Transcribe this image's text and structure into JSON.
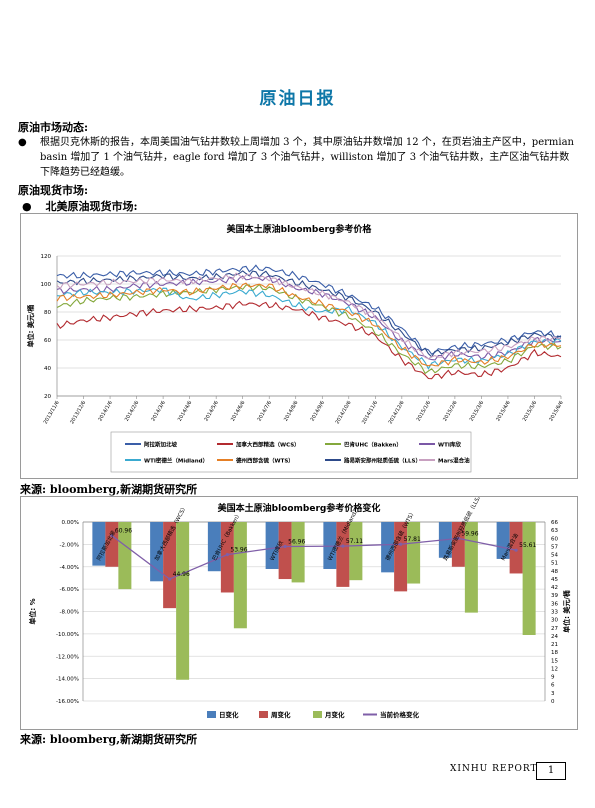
{
  "header": {
    "title": "原油日报"
  },
  "section1": {
    "heading": "原油市场动态:",
    "bullet": "●",
    "paragraph": "根据贝克休斯的报告，本周美国油气钻井数较上周增加 3 个，其中原油钻井数增加 12 个，在页岩油主产区中，permian basin 增加了 1 个油气钻井，eagle ford 增加了 3 个油气钻井，williston 增加了 3 个油气钻井数，主产区油气钻井数下降趋势已经趋缓。"
  },
  "section2": {
    "heading": "原油现货市场:",
    "bullet": "●",
    "subheading": "北美原油现货市场:"
  },
  "sources": {
    "chart1": "来源: bloomberg,新湖期货研究所",
    "chart2": "来源: bloomberg,新湖期货研究所"
  },
  "footer": {
    "report": "XINHU  REPORT",
    "page": "1"
  },
  "chart_data": [
    {
      "type": "line",
      "title": "美国本土原油bloomberg参考价格",
      "ylabel": "单位: 美元/桶",
      "ylim": [
        20,
        120
      ],
      "yticks": [
        "20",
        "40",
        "60",
        "80",
        "100",
        "120"
      ],
      "grid": true,
      "legend_position": "bottom",
      "x": [
        "2013/11/6",
        "2013/12/6",
        "2014/1/6",
        "2014/2/6",
        "2014/3/6",
        "2014/4/6",
        "2014/5/6",
        "2014/6/6",
        "2014/7/6",
        "2014/8/6",
        "2014/9/6",
        "2014/10/6",
        "2014/11/6",
        "2014/12/6",
        "2015/1/6",
        "2015/2/6",
        "2015/3/6",
        "2015/4/6",
        "2015/5/6",
        "2015/6/6"
      ],
      "series": [
        {
          "name": "阿拉斯加北坡",
          "color": "#3a5ea8",
          "values": [
            106,
            106,
            107,
            108,
            108,
            107,
            109,
            111,
            111,
            106,
            100,
            92,
            83,
            68,
            51,
            55,
            57,
            60,
            66,
            63
          ]
        },
        {
          "name": "加拿大西部精选（WCS）",
          "color": "#b22a2f",
          "values": [
            70,
            74,
            76,
            79,
            81,
            82,
            83,
            86,
            85,
            82,
            76,
            71,
            63,
            46,
            33,
            37,
            35,
            40,
            51,
            48
          ]
        },
        {
          "name": "巴肯UHC（Bakken）",
          "color": "#84a83c",
          "values": [
            84,
            88,
            90,
            91,
            93,
            94,
            96,
            98,
            97,
            90,
            84,
            77,
            66,
            50,
            37,
            42,
            41,
            45,
            56,
            55
          ]
        },
        {
          "name": "WTI库欣",
          "color": "#7b58a6",
          "values": [
            95,
            96,
            96,
            99,
            100,
            101,
            102,
            104,
            104,
            97,
            93,
            86,
            76,
            59,
            46,
            50,
            48,
            51,
            60,
            59
          ]
        },
        {
          "name": "WTI密德兰（Midland）",
          "color": "#3aaad0",
          "values": [
            92,
            94,
            94,
            95,
            96,
            89,
            92,
            95,
            92,
            85,
            80,
            82,
            72,
            55,
            42,
            46,
            45,
            50,
            59,
            59
          ]
        },
        {
          "name": "德州西部含硫（WTS）",
          "color": "#e57f25",
          "values": [
            90,
            91,
            92,
            94,
            96,
            94,
            97,
            99,
            99,
            91,
            86,
            80,
            71,
            54,
            41,
            46,
            44,
            48,
            57,
            56
          ]
        },
        {
          "name": "路易斯安那州轻质低硫（LLS）",
          "color": "#2d4a8a",
          "values": [
            101,
            102,
            103,
            104,
            106,
            104,
            105,
            108,
            107,
            101,
            96,
            90,
            80,
            65,
            50,
            53,
            54,
            58,
            64,
            62
          ]
        },
        {
          "name": "Mars混合油",
          "color": "#c8a0c0",
          "values": [
            99,
            100,
            101,
            102,
            103,
            102,
            104,
            106,
            104,
            98,
            93,
            87,
            77,
            61,
            47,
            51,
            52,
            55,
            61,
            61
          ]
        }
      ]
    },
    {
      "type": "bar",
      "title": "美国本土原油bloomberg参考价格变化",
      "ylabel": "单位: %",
      "y2label": "单位: 美元/桶",
      "ylim": [
        -16,
        0
      ],
      "y2lim": [
        0,
        66
      ],
      "yticks": [
        "0.00%",
        "-2.00%",
        "-4.00%",
        "-6.00%",
        "-8.00%",
        "-10.00%",
        "-12.00%",
        "-14.00%",
        "-16.00%"
      ],
      "y2ticks": [
        "0",
        "3",
        "6",
        "9",
        "12",
        "15",
        "18",
        "21",
        "24",
        "27",
        "30",
        "33",
        "36",
        "39",
        "42",
        "45",
        "48",
        "51",
        "54",
        "57",
        "60",
        "63",
        "66"
      ],
      "categories": [
        "阿拉斯加北坡",
        "加拿大西部精选（WCS）",
        "巴肯UHC（Bakken）",
        "WTI库欣",
        "WTI密德兰（Midland）",
        "德州西部含硫（WTS）",
        "路易斯安那州轻质低硫（LLS）",
        "Mars混合油"
      ],
      "legend_position": "bottom",
      "series": [
        {
          "name": "日变化",
          "color": "#4a7ebb",
          "values": [
            -3.9,
            -5.3,
            -4.4,
            -4.2,
            -4.2,
            -4.5,
            -3.2,
            -3.3
          ]
        },
        {
          "name": "周变化",
          "color": "#c0504d",
          "values": [
            -4.0,
            -7.7,
            -6.3,
            -5.1,
            -5.8,
            -6.2,
            -4.0,
            -4.6
          ]
        },
        {
          "name": "月变化",
          "color": "#9bbb59",
          "values": [
            -6.0,
            -14.1,
            -9.5,
            -5.4,
            -5.2,
            -5.5,
            -8.1,
            -10.1
          ]
        }
      ],
      "line_series": {
        "name": "当前价格变化",
        "color": "#7f5fa8",
        "values": [
          60.96,
          44.96,
          53.96,
          56.96,
          57.11,
          57.81,
          59.96,
          55.61
        ]
      }
    }
  ]
}
